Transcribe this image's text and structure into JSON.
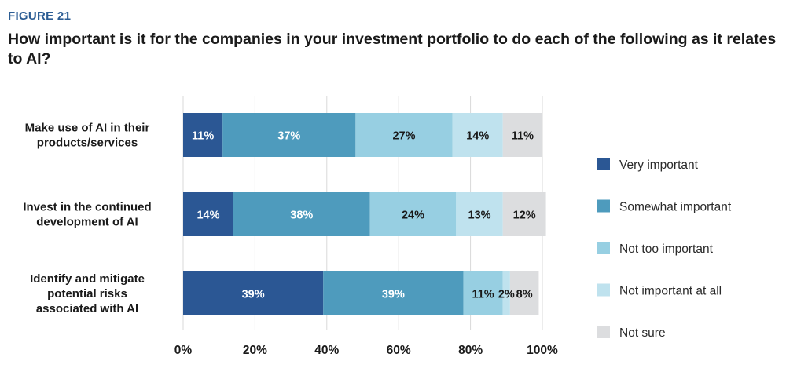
{
  "figure_label": "FIGURE 21",
  "title": "How important is it for the companies in your investment portfolio to do each of the following as it relates to AI?",
  "chart_data": {
    "type": "bar",
    "orientation": "horizontal",
    "stacked": true,
    "categories": [
      [
        "Make use of AI in their",
        "products/services"
      ],
      [
        "Invest in the continued",
        "development of AI"
      ],
      [
        "Identify and mitigate",
        "potential risks",
        "associated with AI"
      ]
    ],
    "series": [
      {
        "name": "Very important",
        "color": "#2b5794",
        "values": [
          11,
          14,
          39
        ],
        "labels": [
          "11%",
          "14%",
          "39%"
        ],
        "label_color": "#ffffff"
      },
      {
        "name": "Somewhat important",
        "color": "#4e9bbd",
        "values": [
          37,
          38,
          39
        ],
        "labels": [
          "37%",
          "38%",
          "39%"
        ],
        "label_color": "#ffffff"
      },
      {
        "name": "Not too important",
        "color": "#97cfe2",
        "values": [
          27,
          24,
          11
        ],
        "labels": [
          "27%",
          "24%",
          "11%"
        ],
        "label_color": "#1a1a1a"
      },
      {
        "name": "Not important at all",
        "color": "#bfe2ee",
        "values": [
          14,
          13,
          2
        ],
        "labels": [
          "14%",
          "13%",
          "2%"
        ],
        "label_color": "#1a1a1a"
      },
      {
        "name": "Not sure",
        "color": "#dcdddf",
        "values": [
          11,
          12,
          8
        ],
        "labels": [
          "11%",
          "12%",
          "8%"
        ],
        "label_color": "#1a1a1a"
      }
    ],
    "xlim": [
      0,
      100
    ],
    "ticks": [
      "0%",
      "20%",
      "40%",
      "60%",
      "80%",
      "100%"
    ],
    "grid": true,
    "legend_position": "right"
  }
}
